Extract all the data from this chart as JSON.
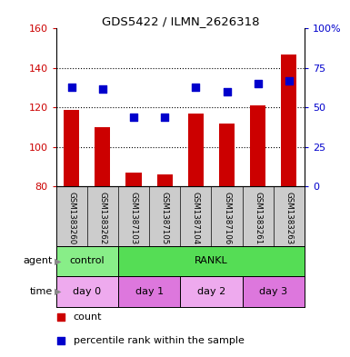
{
  "title": "GDS5422 / ILMN_2626318",
  "samples": [
    "GSM1383260",
    "GSM1383262",
    "GSM1387103",
    "GSM1387105",
    "GSM1387104",
    "GSM1387106",
    "GSM1383261",
    "GSM1383263"
  ],
  "counts": [
    119,
    110,
    87,
    86,
    117,
    112,
    121,
    147
  ],
  "percentiles": [
    63,
    62,
    44,
    44,
    63,
    60,
    65,
    67
  ],
  "ylim_left": [
    80,
    160
  ],
  "ylim_right": [
    0,
    100
  ],
  "yticks_left": [
    80,
    100,
    120,
    140,
    160
  ],
  "yticks_right": [
    0,
    25,
    50,
    75,
    100
  ],
  "yticklabels_right": [
    "0",
    "25",
    "50",
    "75",
    "100%"
  ],
  "bar_color": "#cc0000",
  "dot_color": "#0000cc",
  "agent_labels": [
    {
      "text": "control",
      "start": 0,
      "end": 2,
      "color": "#88ee88"
    },
    {
      "text": "RANKL",
      "start": 2,
      "end": 8,
      "color": "#55dd55"
    }
  ],
  "time_labels": [
    {
      "text": "day 0",
      "start": 0,
      "end": 2,
      "color": "#eeaaee"
    },
    {
      "text": "day 1",
      "start": 2,
      "end": 4,
      "color": "#dd77dd"
    },
    {
      "text": "day 2",
      "start": 4,
      "end": 6,
      "color": "#eeaaee"
    },
    {
      "text": "day 3",
      "start": 6,
      "end": 8,
      "color": "#dd77dd"
    }
  ],
  "grid_color": "#000000",
  "bar_width": 0.5,
  "dot_size": 35,
  "left_tick_color": "#cc0000",
  "right_tick_color": "#0000cc",
  "sample_bg_color": "#cccccc",
  "background_color": "#ffffff",
  "arrow_color": "#888888",
  "legend_count_color": "#cc0000",
  "legend_pct_color": "#0000cc"
}
